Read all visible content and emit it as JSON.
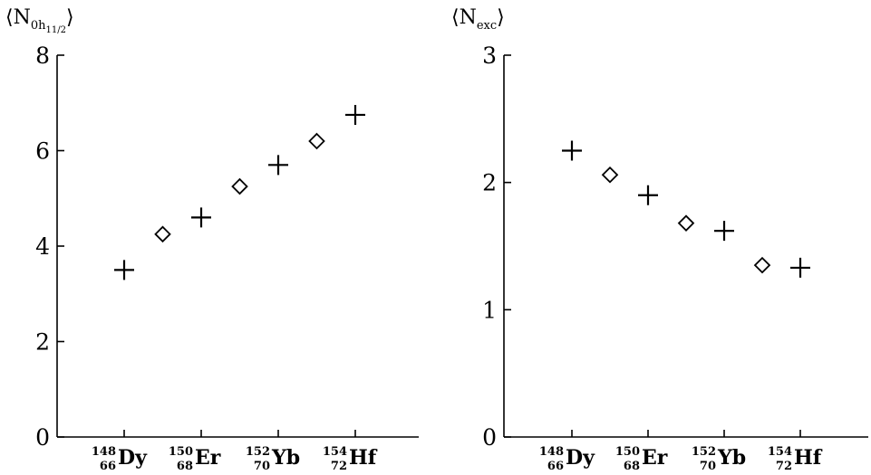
{
  "chart_data": [
    {
      "type": "scatter",
      "ylabel": "⟨N0h11/2⟩",
      "ylabel_parts": {
        "open": "⟨N",
        "sub": "0h",
        "subsub": "11/2",
        "close": "⟩"
      },
      "ylim": [
        0,
        8
      ],
      "yticks": [
        "0",
        "2",
        "4",
        "6",
        "8"
      ],
      "x_tick_labels": [
        {
          "A": "148",
          "Z": "66",
          "symbol": "Dy"
        },
        {
          "A": "150",
          "Z": "68",
          "symbol": "Er"
        },
        {
          "A": "152",
          "Z": "70",
          "symbol": "Yb"
        },
        {
          "A": "154",
          "Z": "72",
          "symbol": "Hf"
        }
      ],
      "series": [
        {
          "marker": "plus",
          "x": [
            148,
            150,
            152,
            154
          ],
          "y": [
            3.5,
            4.6,
            5.7,
            6.75
          ]
        },
        {
          "marker": "diamond",
          "x": [
            149,
            151,
            153
          ],
          "y": [
            4.25,
            5.25,
            6.2
          ]
        }
      ]
    },
    {
      "type": "scatter",
      "ylabel": "⟨Nexc⟩",
      "ylabel_parts": {
        "open": "⟨N",
        "sub": "exc",
        "subsub": "",
        "close": "⟩"
      },
      "ylim": [
        0,
        3
      ],
      "yticks": [
        "0",
        "1",
        "2",
        "3"
      ],
      "x_tick_labels": [
        {
          "A": "148",
          "Z": "66",
          "symbol": "Dy"
        },
        {
          "A": "150",
          "Z": "68",
          "symbol": "Er"
        },
        {
          "A": "152",
          "Z": "70",
          "symbol": "Yb"
        },
        {
          "A": "154",
          "Z": "72",
          "symbol": "Hf"
        }
      ],
      "series": [
        {
          "marker": "plus",
          "x": [
            148,
            150,
            152,
            154
          ],
          "y": [
            2.25,
            1.9,
            1.62,
            1.33
          ]
        },
        {
          "marker": "diamond",
          "x": [
            149,
            151,
            153
          ],
          "y": [
            2.06,
            1.68,
            1.35
          ]
        }
      ]
    }
  ]
}
